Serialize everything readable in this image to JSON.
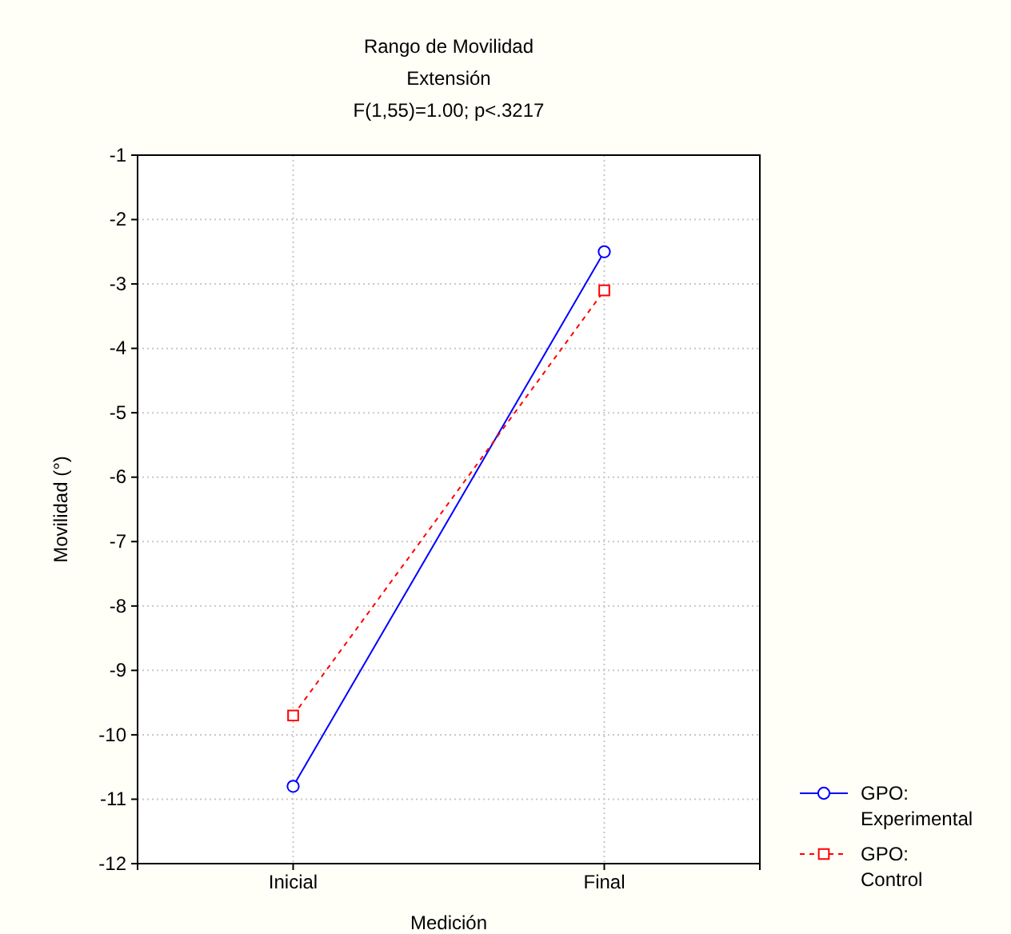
{
  "chart_data": {
    "type": "line",
    "title": "Rango de Movilidad",
    "subtitle": "Extensión",
    "annotations": [
      "F(1,55)=1.00; p<.3217"
    ],
    "xlabel": "Medición",
    "ylabel": "Movilidad (°)",
    "categories": [
      "Inicial",
      "Final"
    ],
    "ylim": [
      -12,
      -1
    ],
    "yticks": [
      -12,
      -11,
      -10,
      -9,
      -8,
      -7,
      -6,
      -5,
      -4,
      -3,
      -2,
      -1
    ],
    "grid": true,
    "legend": "bottom right",
    "series": [
      {
        "name": "GPO: Experimental",
        "color": "#0000ff",
        "values": [
          -10.8,
          -2.5
        ],
        "marker": "circle",
        "line_style": "solid"
      },
      {
        "name": "GPO: Control",
        "color": "#ff0000",
        "values": [
          -9.7,
          -3.1
        ],
        "marker": "square",
        "line_style": "dashed"
      }
    ]
  }
}
